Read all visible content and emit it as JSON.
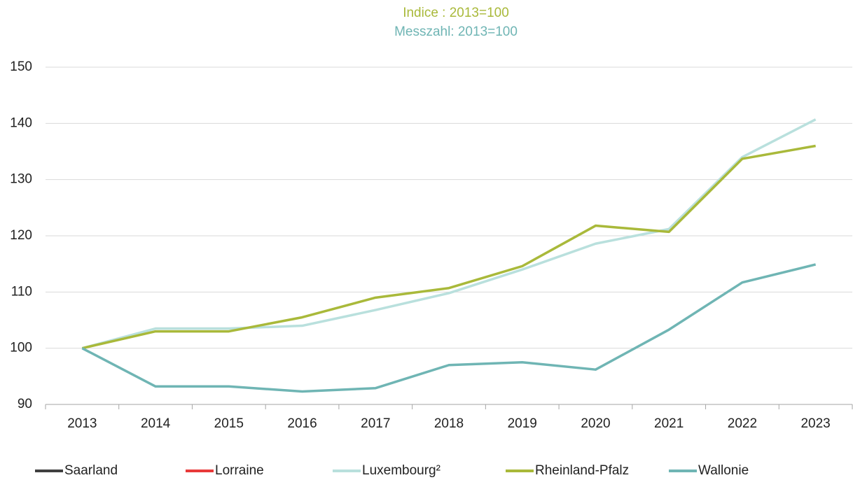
{
  "chart_data": {
    "type": "line",
    "title": "Indice : 2013=100",
    "title_color": "#a9b93a",
    "subtitle": "Messzahl: 2013=100",
    "subtitle_color": "#6fb5b4",
    "categories": [
      "2013",
      "2014",
      "2015",
      "2016",
      "2017",
      "2018",
      "2019",
      "2020",
      "2021",
      "2022",
      "2023"
    ],
    "series": [
      {
        "name": "Saarland",
        "color": "#404040",
        "values": [
          null,
          null,
          null,
          null,
          null,
          null,
          null,
          null,
          null,
          null,
          null
        ]
      },
      {
        "name": "Lorraine",
        "color": "#e83a3a",
        "values": [
          null,
          null,
          null,
          null,
          null,
          null,
          null,
          null,
          null,
          null,
          null
        ]
      },
      {
        "name": "Luxembourg²",
        "color": "#b9e0dd",
        "values": [
          100,
          103.5,
          103.5,
          104,
          106.8,
          109.8,
          114,
          118.6,
          121.2,
          134,
          140.7
        ]
      },
      {
        "name": "Rheinland-Pfalz",
        "color": "#a9b93a",
        "values": [
          100,
          103,
          103,
          105.5,
          109,
          110.7,
          114.6,
          121.8,
          120.7,
          133.7,
          136
        ]
      },
      {
        "name": "Wallonie",
        "color": "#6fb5b4",
        "values": [
          100,
          93.2,
          93.2,
          92.3,
          92.9,
          97,
          97.5,
          96.2,
          103.3,
          111.7,
          114.9
        ]
      }
    ],
    "ylim": [
      90,
      150
    ],
    "yticks": [
      90,
      100,
      110,
      120,
      130,
      140,
      150
    ],
    "grid": true,
    "legend": "bottom"
  }
}
